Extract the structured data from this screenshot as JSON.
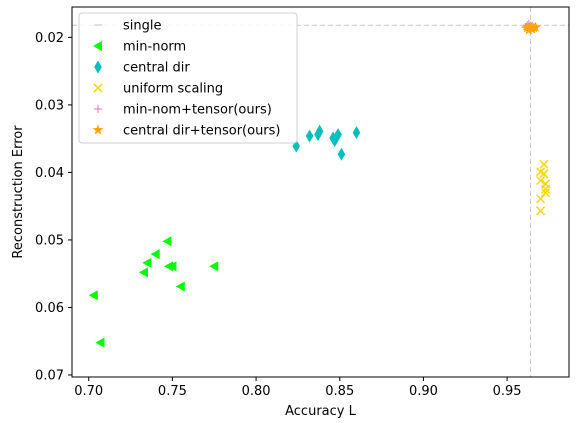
{
  "chart_data": {
    "type": "scatter",
    "xlabel": "Accuracy L",
    "ylabel": "Reconstruction Error",
    "xlim": [
      0.69,
      0.987
    ],
    "ylim": [
      0.0155,
      0.0703
    ],
    "y_inverted": true,
    "x_ticks": [
      "0.70",
      "0.75",
      "0.80",
      "0.85",
      "0.90",
      "0.95"
    ],
    "x_tick_values": [
      0.7,
      0.75,
      0.8,
      0.85,
      0.9,
      0.95
    ],
    "y_ticks": [
      "0.02",
      "0.03",
      "0.04",
      "0.05",
      "0.06",
      "0.07"
    ],
    "y_tick_values": [
      0.02,
      0.03,
      0.04,
      0.05,
      0.06,
      0.07
    ],
    "grid": false,
    "legend_position": "top-left",
    "reference_lines": {
      "x": 0.964,
      "y": 0.0182,
      "color": "#c8c8c8",
      "style": "dashed"
    },
    "series": [
      {
        "name": "single",
        "marker": "hline",
        "color": "#c0c0c0",
        "points": []
      },
      {
        "name": "min-norm",
        "marker": "triangle-left",
        "color": "#00ff00",
        "points": [
          [
            0.703,
            0.0582
          ],
          [
            0.707,
            0.0652
          ],
          [
            0.733,
            0.0548
          ],
          [
            0.735,
            0.0534
          ],
          [
            0.74,
            0.0521
          ],
          [
            0.747,
            0.0502
          ],
          [
            0.748,
            0.0539
          ],
          [
            0.75,
            0.0539
          ],
          [
            0.755,
            0.0569
          ],
          [
            0.775,
            0.0539
          ]
        ]
      },
      {
        "name": "central dir",
        "marker": "thin-diamond",
        "color": "#00bfbf",
        "points": [
          [
            0.824,
            0.0361
          ],
          [
            0.832,
            0.0346
          ],
          [
            0.837,
            0.0344
          ],
          [
            0.838,
            0.0339
          ],
          [
            0.846,
            0.0349
          ],
          [
            0.847,
            0.0353
          ],
          [
            0.849,
            0.0344
          ],
          [
            0.851,
            0.0373
          ],
          [
            0.86,
            0.0341
          ]
        ]
      },
      {
        "name": "uniform scaling",
        "marker": "x",
        "color": "#ffd700",
        "points": [
          [
            0.97,
            0.0399
          ],
          [
            0.97,
            0.0412
          ],
          [
            0.97,
            0.0439
          ],
          [
            0.97,
            0.0457
          ],
          [
            0.972,
            0.0388
          ],
          [
            0.972,
            0.0402
          ],
          [
            0.973,
            0.0417
          ],
          [
            0.973,
            0.043
          ],
          [
            0.973,
            0.0425
          ]
        ]
      },
      {
        "name": "min-nom+tensor(ours)",
        "marker": "plus",
        "color": "#e377c2",
        "points": [
          [
            0.961,
            0.0185
          ],
          [
            0.962,
            0.0182
          ],
          [
            0.963,
            0.018
          ],
          [
            0.964,
            0.0186
          ],
          [
            0.965,
            0.0183
          ],
          [
            0.962,
            0.0188
          ]
        ]
      },
      {
        "name": "central dir+tensor(ours)",
        "marker": "star",
        "color": "#ffa500",
        "points": [
          [
            0.962,
            0.0186
          ],
          [
            0.964,
            0.0184
          ],
          [
            0.965,
            0.0188
          ],
          [
            0.966,
            0.0186
          ],
          [
            0.967,
            0.0185
          ],
          [
            0.963,
            0.0189
          ]
        ]
      }
    ]
  }
}
